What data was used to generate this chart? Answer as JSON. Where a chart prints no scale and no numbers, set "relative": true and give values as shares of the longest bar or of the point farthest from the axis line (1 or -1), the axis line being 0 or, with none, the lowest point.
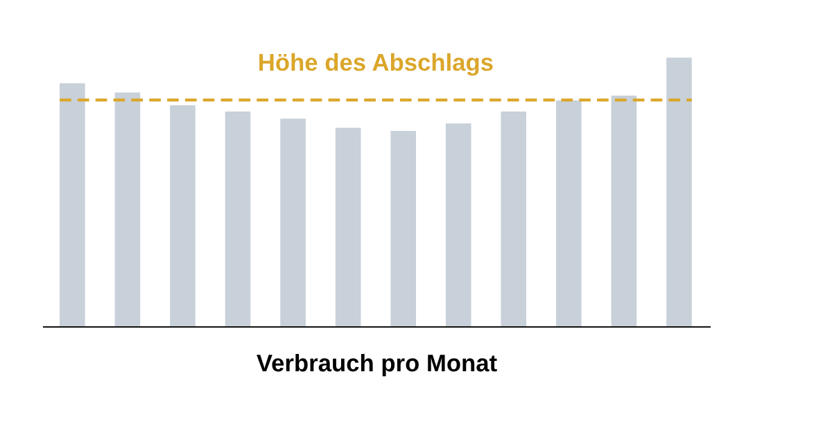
{
  "chart_data": {
    "type": "bar",
    "relative": true,
    "xlabel": "Verbrauch pro Monat",
    "categories": [
      null,
      null,
      null,
      null,
      null,
      null,
      null,
      null,
      null,
      null,
      null,
      null
    ],
    "values": [
      0.905,
      0.871,
      0.823,
      0.8,
      0.774,
      0.74,
      0.728,
      0.756,
      0.8,
      0.841,
      0.859,
      1
    ],
    "color": "#c8d0d9",
    "ref_lines": [
      {
        "axis": "y",
        "value": 0.843,
        "label": "Höhe des Abschlags",
        "color": "#dba62a",
        "line_style": "dashed"
      }
    ],
    "tick_labels": false,
    "grid": false,
    "legend": false
  }
}
